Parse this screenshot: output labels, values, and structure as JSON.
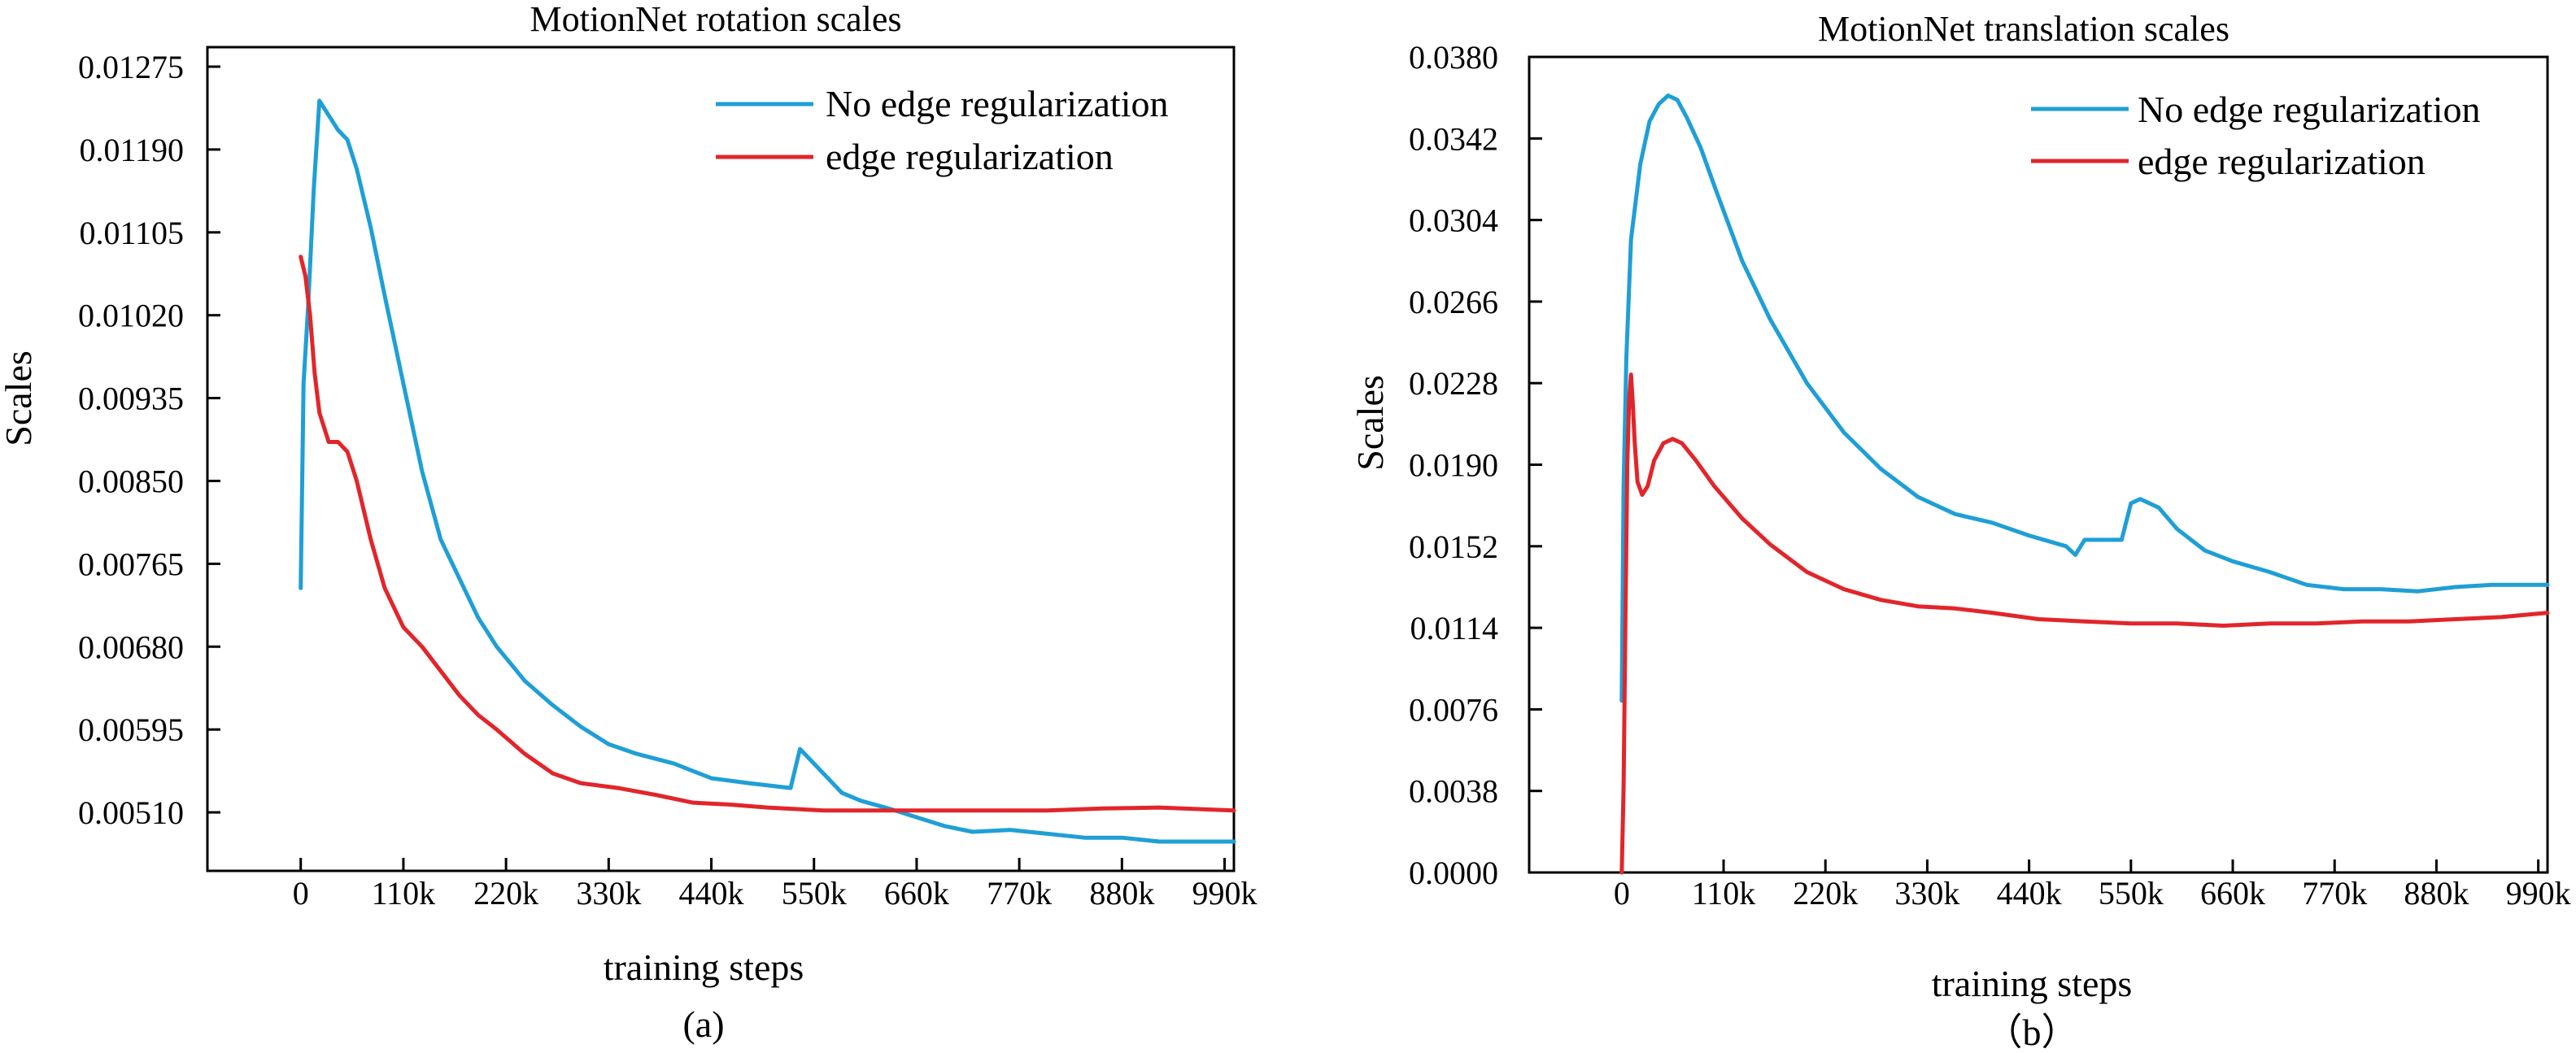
{
  "colors": {
    "blue": "#1f9fd6",
    "red": "#e1262b"
  },
  "chart_data": [
    {
      "type": "line",
      "title": "MotionNet rotation scales",
      "xlabel": "training steps",
      "ylabel": "Scales",
      "caption": "(a)",
      "xlim": [
        -100000,
        1000000
      ],
      "ylim": [
        0.0045,
        0.01295
      ],
      "x_ticks": [
        0,
        110000,
        220000,
        330000,
        440000,
        550000,
        660000,
        770000,
        880000,
        990000
      ],
      "x_tick_labels": [
        "0",
        "110k",
        "220k",
        "330k",
        "440k",
        "550k",
        "660k",
        "770k",
        "880k",
        "990k"
      ],
      "y_ticks": [
        0.0051,
        0.00595,
        0.0068,
        0.00765,
        0.0085,
        0.00935,
        0.0102,
        0.01105,
        0.0119,
        0.01275
      ],
      "y_tick_labels": [
        "0.00510",
        "0.00595",
        "0.00680",
        "0.00765",
        "0.00850",
        "0.00935",
        "0.01020",
        "0.01105",
        "0.01190",
        "0.01275"
      ],
      "legend_position": "top-right",
      "series": [
        {
          "name": "No edge regularization",
          "color": "#1f9fd6",
          "x": [
            0,
            3000,
            8000,
            14000,
            20000,
            30000,
            40000,
            50000,
            60000,
            75000,
            90000,
            110000,
            130000,
            150000,
            170000,
            190000,
            210000,
            240000,
            270000,
            300000,
            330000,
            360000,
            400000,
            440000,
            480000,
            525000,
            535000,
            545000,
            560000,
            580000,
            600000,
            630000,
            660000,
            690000,
            720000,
            760000,
            800000,
            840000,
            880000,
            920000,
            960000,
            1000000
          ],
          "y": [
            0.0074,
            0.0095,
            0.0103,
            0.0115,
            0.0124,
            0.01225,
            0.0121,
            0.012,
            0.0117,
            0.0111,
            0.0104,
            0.0095,
            0.0086,
            0.0079,
            0.0075,
            0.0071,
            0.0068,
            0.00645,
            0.0062,
            0.00598,
            0.0058,
            0.0057,
            0.0056,
            0.00545,
            0.0054,
            0.00535,
            0.00575,
            0.00565,
            0.0055,
            0.0053,
            0.00522,
            0.00514,
            0.00505,
            0.00496,
            0.0049,
            0.00492,
            0.00488,
            0.00484,
            0.00484,
            0.0048,
            0.0048,
            0.0048
          ]
        },
        {
          "name": "edge regularization",
          "color": "#e1262b",
          "x": [
            0,
            5000,
            10000,
            15000,
            20000,
            30000,
            40000,
            50000,
            60000,
            75000,
            90000,
            110000,
            130000,
            150000,
            170000,
            190000,
            210000,
            240000,
            270000,
            300000,
            340000,
            380000,
            420000,
            460000,
            500000,
            560000,
            620000,
            680000,
            740000,
            800000,
            860000,
            920000,
            1000000
          ],
          "y": [
            0.0108,
            0.0106,
            0.0102,
            0.0096,
            0.0092,
            0.0089,
            0.0089,
            0.0088,
            0.0085,
            0.0079,
            0.0074,
            0.007,
            0.0068,
            0.00655,
            0.0063,
            0.0061,
            0.00595,
            0.0057,
            0.0055,
            0.0054,
            0.00535,
            0.00528,
            0.0052,
            0.00518,
            0.00515,
            0.00512,
            0.00512,
            0.00512,
            0.00512,
            0.00512,
            0.00514,
            0.00515,
            0.00512
          ]
        }
      ]
    },
    {
      "type": "line",
      "title": "MotionNet translation scales",
      "xlabel": "training steps",
      "ylabel": "Scales",
      "caption": "（b）",
      "xlim": [
        -100000,
        1000000
      ],
      "ylim": [
        0.0,
        0.038
      ],
      "x_ticks": [
        0,
        110000,
        220000,
        330000,
        440000,
        550000,
        660000,
        770000,
        880000,
        990000
      ],
      "x_tick_labels": [
        "0",
        "110k",
        "220k",
        "330k",
        "440k",
        "550k",
        "660k",
        "770k",
        "880k",
        "990k"
      ],
      "y_ticks": [
        0.0,
        0.0038,
        0.0076,
        0.0114,
        0.0152,
        0.019,
        0.0228,
        0.0266,
        0.0304,
        0.0342,
        0.038
      ],
      "y_tick_labels": [
        "0.0000",
        "0.0038",
        "0.0076",
        "0.0114",
        "0.0152",
        "0.0190",
        "0.0228",
        "0.0266",
        "0.0304",
        "0.0342",
        "0.0380"
      ],
      "legend_position": "top-right",
      "series": [
        {
          "name": "No edge regularization",
          "color": "#1f9fd6",
          "x": [
            0,
            2000,
            5000,
            10000,
            20000,
            30000,
            40000,
            50000,
            60000,
            70000,
            85000,
            100000,
            130000,
            160000,
            200000,
            240000,
            280000,
            320000,
            360000,
            400000,
            440000,
            480000,
            490000,
            500000,
            520000,
            540000,
            550000,
            560000,
            570000,
            580000,
            600000,
            630000,
            660000,
            700000,
            740000,
            780000,
            820000,
            860000,
            900000,
            940000,
            1000000
          ],
          "y": [
            0.008,
            0.018,
            0.024,
            0.0295,
            0.033,
            0.035,
            0.0358,
            0.0362,
            0.036,
            0.0352,
            0.0338,
            0.032,
            0.0285,
            0.0258,
            0.0228,
            0.0205,
            0.0188,
            0.0175,
            0.0167,
            0.0163,
            0.0157,
            0.0152,
            0.0148,
            0.0155,
            0.0155,
            0.0155,
            0.0172,
            0.0174,
            0.0172,
            0.017,
            0.016,
            0.015,
            0.0145,
            0.014,
            0.0134,
            0.0132,
            0.0132,
            0.0131,
            0.0133,
            0.0134,
            0.0134
          ]
        },
        {
          "name": "edge regularization",
          "color": "#e1262b",
          "x": [
            0,
            2000,
            4000,
            6000,
            8000,
            10000,
            12000,
            14000,
            17000,
            22000,
            28000,
            35000,
            45000,
            55000,
            65000,
            80000,
            100000,
            130000,
            160000,
            200000,
            240000,
            280000,
            320000,
            360000,
            400000,
            450000,
            500000,
            550000,
            600000,
            650000,
            700000,
            750000,
            800000,
            850000,
            900000,
            950000,
            1000000
          ],
          "y": [
            0.0,
            0.004,
            0.012,
            0.019,
            0.022,
            0.0232,
            0.0218,
            0.02,
            0.0182,
            0.0176,
            0.018,
            0.0192,
            0.02,
            0.0202,
            0.02,
            0.0192,
            0.018,
            0.0165,
            0.0153,
            0.014,
            0.0132,
            0.0127,
            0.0124,
            0.0123,
            0.0121,
            0.0118,
            0.0117,
            0.0116,
            0.0116,
            0.0115,
            0.0116,
            0.0116,
            0.0117,
            0.0117,
            0.0118,
            0.0119,
            0.0121
          ]
        }
      ]
    }
  ]
}
